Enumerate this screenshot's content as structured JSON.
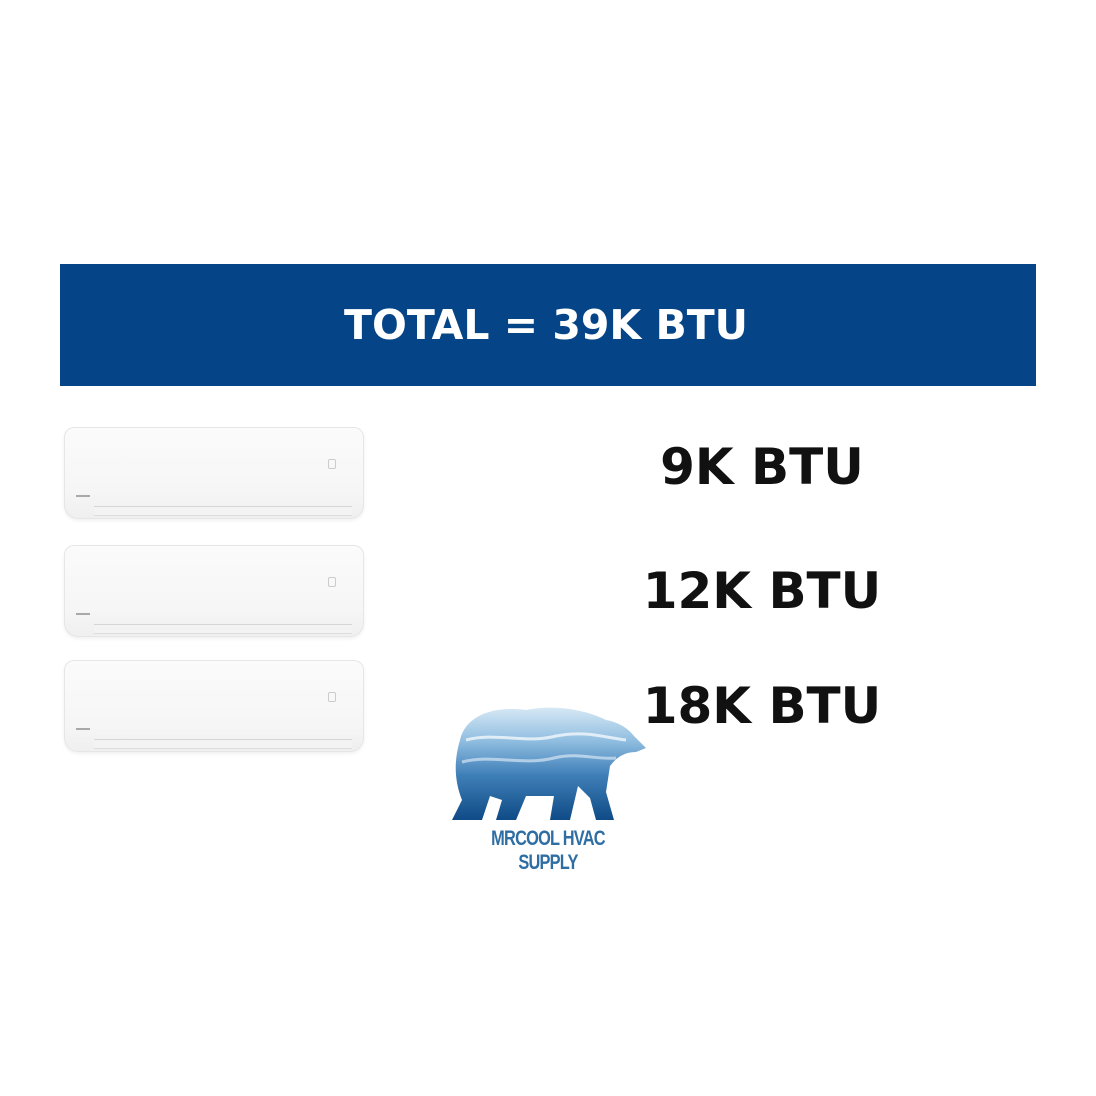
{
  "banner": {
    "title": "TOTAL = 39K BTU",
    "color": "#044487"
  },
  "units": [
    {
      "label": "9K BTU"
    },
    {
      "label": "12K BTU"
    },
    {
      "label": "18K BTU"
    }
  ],
  "logo": {
    "text": "MRCOOL HVAC SUPPLY",
    "color": "#2f6ea3",
    "icon": "polar-bear-icon"
  }
}
